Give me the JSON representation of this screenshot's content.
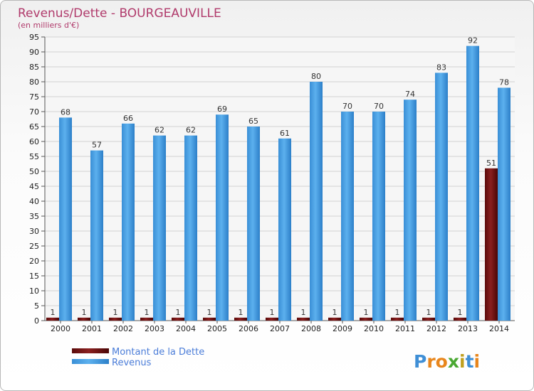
{
  "chart_data": {
    "type": "bar",
    "title": "Revenus/Dette - BOURGEAUVILLE",
    "subtitle": "(en milliers d'€)",
    "xlabel": "",
    "ylabel": "",
    "ylim": [
      0,
      95
    ],
    "ytick_step": 5,
    "grid": true,
    "legend_position": "bottom-left",
    "categories": [
      "2000",
      "2001",
      "2002",
      "2003",
      "2004",
      "2005",
      "2006",
      "2007",
      "2008",
      "2009",
      "2010",
      "2011",
      "2012",
      "2013",
      "2014"
    ],
    "series": [
      {
        "name": "Montant de la Dette",
        "color": "#7a1212",
        "values": [
          1,
          1,
          1,
          1,
          1,
          1,
          1,
          1,
          1,
          1,
          1,
          1,
          1,
          1,
          51
        ]
      },
      {
        "name": "Revenus",
        "color": "#4da3e8",
        "values": [
          68,
          57,
          66,
          62,
          62,
          69,
          65,
          61,
          80,
          70,
          70,
          74,
          83,
          92,
          78
        ]
      }
    ]
  },
  "branding": {
    "logo_letters": [
      "P",
      "r",
      "o",
      "x",
      "i",
      "t",
      "i"
    ],
    "logo_colors": [
      "#3f8fd6",
      "#e8861c",
      "#e8861c",
      "#4aa832",
      "#c0a020",
      "#3f8fd6",
      "#e8861c"
    ]
  }
}
